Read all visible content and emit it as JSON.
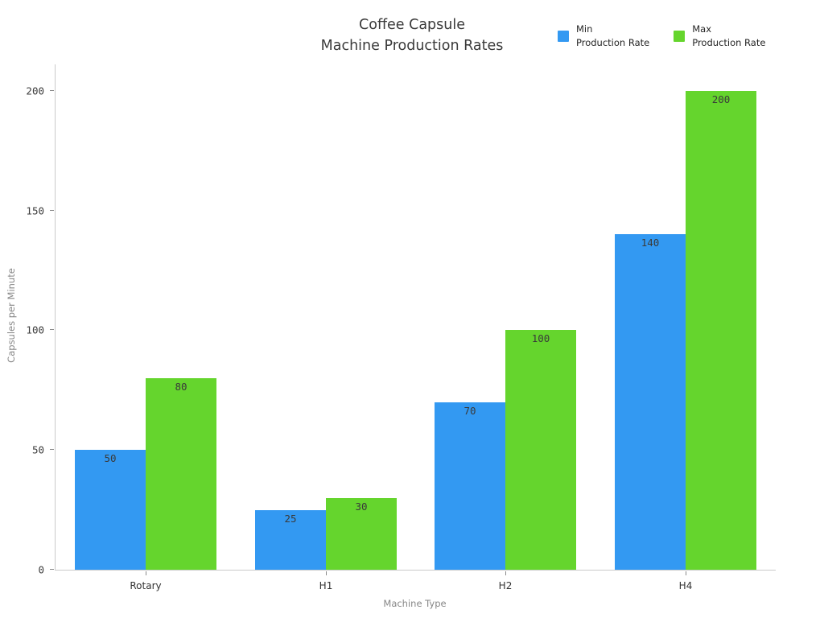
{
  "title": {
    "line1": "Coffee Capsule",
    "line2": "Machine Production Rates"
  },
  "legend": {
    "items": [
      {
        "key": "min",
        "label_line1": "Min",
        "label_line2": "Production Rate",
        "color": "#3399f2"
      },
      {
        "key": "max",
        "label_line1": "Max",
        "label_line2": "Production Rate",
        "color": "#65d52d"
      }
    ]
  },
  "axes": {
    "x_title": "Machine Type",
    "y_title": "Capsules per Minute",
    "y_ticks": [
      0,
      50,
      100,
      150,
      200
    ]
  },
  "chart_data": {
    "type": "bar",
    "title": "Coffee Capsule Machine Production Rates",
    "categories": [
      "Rotary",
      "H1",
      "H2",
      "H4"
    ],
    "series": [
      {
        "name": "Min Production Rate",
        "color": "#3399f2",
        "values": [
          50,
          25,
          70,
          140
        ]
      },
      {
        "name": "Max Production Rate",
        "color": "#65d52d",
        "values": [
          80,
          30,
          100,
          200
        ]
      }
    ],
    "xlabel": "Machine Type",
    "ylabel": "Capsules per Minute",
    "ylim": [
      0,
      200
    ],
    "grid": false,
    "legend_position": "top-right",
    "bar_value_labels": true
  }
}
